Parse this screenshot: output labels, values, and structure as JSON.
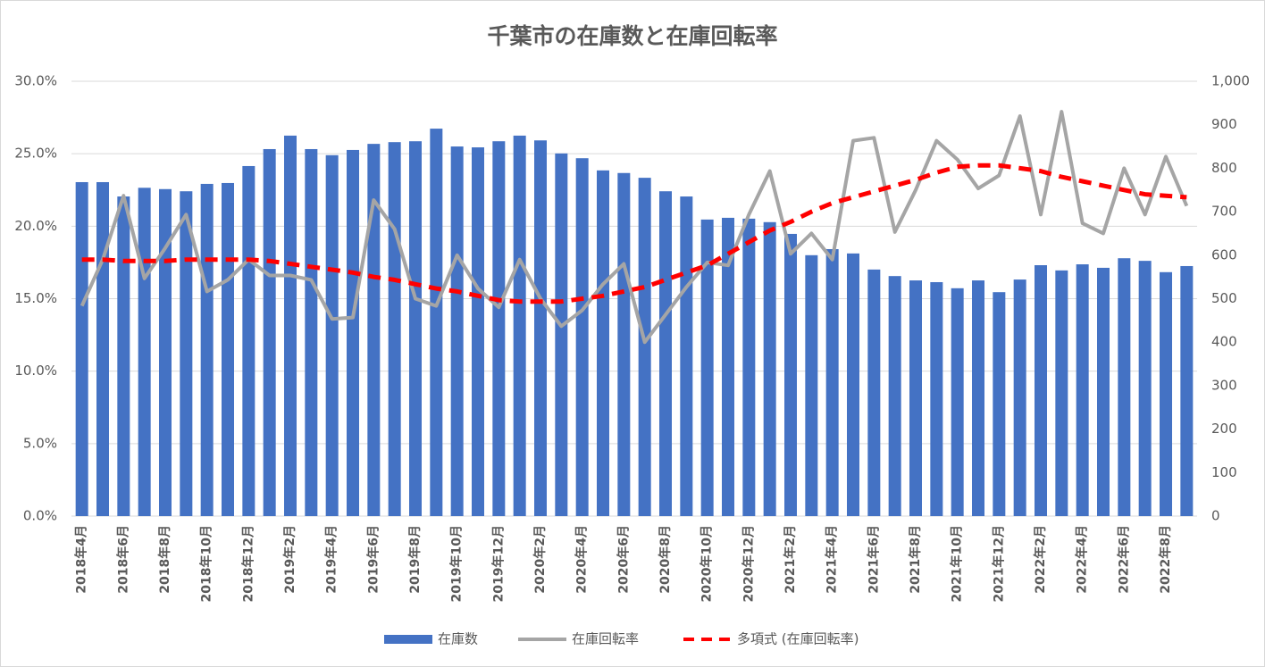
{
  "chart_data": {
    "type": "combo",
    "title": "千葉市の在庫数と在庫回転率",
    "categories": [
      "2018年4月",
      null,
      "2018年6月",
      null,
      "2018年8月",
      null,
      "2018年10月",
      null,
      "2018年12月",
      null,
      "2019年2月",
      null,
      "2019年4月",
      null,
      "2019年6月",
      null,
      "2019年8月",
      null,
      "2019年10月",
      null,
      "2019年12月",
      null,
      "2020年2月",
      null,
      "2020年4月",
      null,
      "2020年6月",
      null,
      "2020年8月",
      null,
      "2020年10月",
      null,
      "2020年12月",
      null,
      "2021年2月",
      null,
      "2021年4月",
      null,
      "2021年6月",
      null,
      "2021年8月",
      null,
      "2021年10月",
      null,
      "2021年12月",
      null,
      "2022年2月",
      null,
      "2022年4月",
      null,
      "2022年6月",
      null,
      "2022年8月",
      null
    ],
    "series": [
      {
        "name": "在庫数",
        "type": "bar",
        "axis": "y2",
        "color": "#4472c4",
        "values": [
          768,
          768,
          735,
          755,
          752,
          747,
          764,
          766,
          805,
          844,
          875,
          844,
          830,
          842,
          856,
          860,
          862,
          891,
          850,
          848,
          862,
          875,
          864,
          834,
          823,
          795,
          789,
          778,
          747,
          735,
          682,
          686,
          684,
          676,
          649,
          600,
          614,
          604,
          567,
          552,
          542,
          538,
          524,
          542,
          515,
          544,
          577,
          565,
          579,
          571,
          593,
          587,
          561,
          575
        ]
      },
      {
        "name": "在庫回転率",
        "type": "line",
        "axis": "y",
        "color": "#a5a5a5",
        "values": [
          14.5,
          17.7,
          22.1,
          16.4,
          18.5,
          20.8,
          15.5,
          16.3,
          17.7,
          16.6,
          16.6,
          16.3,
          13.6,
          13.7,
          21.8,
          19.8,
          15.0,
          14.5,
          18.0,
          15.7,
          14.4,
          17.7,
          15.0,
          13.1,
          14.2,
          16.0,
          17.4,
          12.0,
          13.9,
          15.8,
          17.5,
          17.3,
          20.8,
          23.8,
          18.1,
          19.5,
          17.7,
          25.9,
          26.1,
          19.6,
          22.5,
          25.9,
          24.6,
          22.6,
          23.5,
          27.6,
          20.8,
          27.9,
          20.2,
          19.5,
          24.0,
          20.8,
          24.8,
          21.4
        ]
      },
      {
        "name": "多項式 (在庫回転率)",
        "type": "dashed",
        "axis": "y",
        "color": "#ff0000",
        "values": [
          17.7,
          17.7,
          17.6,
          17.6,
          17.6,
          17.7,
          17.7,
          17.7,
          17.7,
          17.6,
          17.4,
          17.2,
          17.0,
          16.8,
          16.5,
          16.3,
          16.0,
          15.7,
          15.5,
          15.2,
          14.9,
          14.8,
          14.8,
          14.8,
          15.0,
          15.2,
          15.5,
          15.8,
          16.3,
          16.8,
          17.3,
          18.1,
          18.9,
          19.7,
          20.3,
          21.0,
          21.6,
          22.0,
          22.4,
          22.8,
          23.2,
          23.7,
          24.1,
          24.2,
          24.2,
          24.0,
          23.8,
          23.4,
          23.1,
          22.8,
          22.5,
          22.2,
          22.1,
          22.0
        ]
      }
    ],
    "ylim": [
      0,
      30
    ],
    "yticks": [
      {
        "value": 0,
        "label": "0.0%"
      },
      {
        "value": 5,
        "label": "5.0%"
      },
      {
        "value": 10,
        "label": "10.0%"
      },
      {
        "value": 15,
        "label": "15.0%"
      },
      {
        "value": 20,
        "label": "20.0%"
      },
      {
        "value": 25,
        "label": "25.0%"
      },
      {
        "value": 30,
        "label": "30.0%"
      }
    ],
    "y2lim": [
      0,
      1000
    ],
    "y2ticks": [
      0,
      100,
      200,
      300,
      400,
      500,
      600,
      700,
      800,
      900,
      {
        "value": 1000,
        "label": "1,000"
      }
    ],
    "grid": true,
    "legend": "bottom"
  }
}
